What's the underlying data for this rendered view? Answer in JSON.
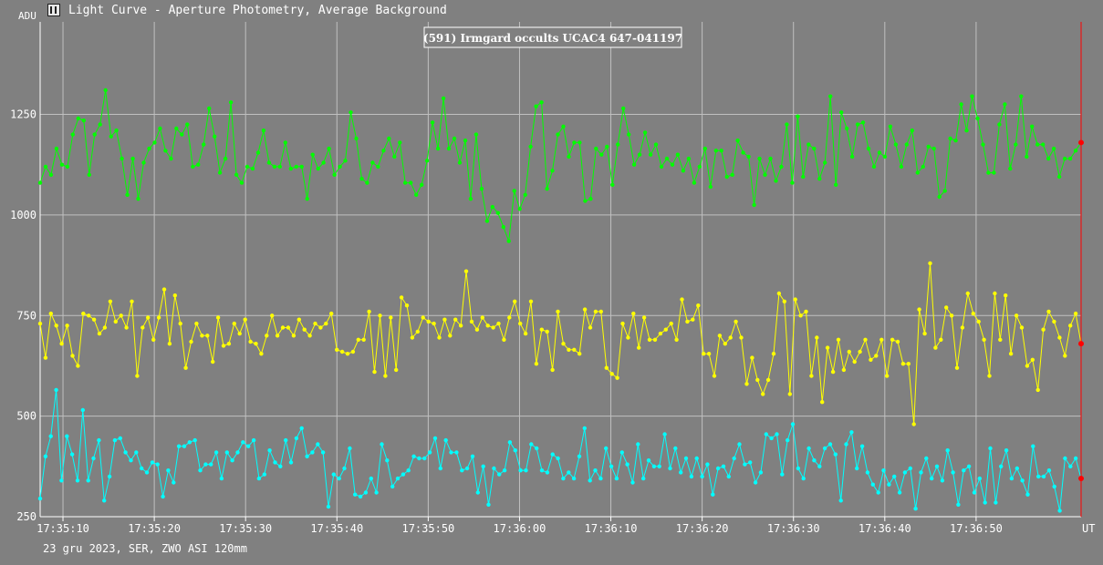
{
  "window": {
    "title": "Light Curve - Aperture Photometry, Average Background"
  },
  "footer": {
    "info": "23 gru 2023, SER, ZWO ASI 120mm"
  },
  "chart_data": {
    "type": "line",
    "title": "(591) Irmgard occults UCAC4 647-041197",
    "ylabel": "ADU",
    "xlabel": "UT",
    "ylim": [
      250,
      1480
    ],
    "grid": true,
    "y_ticks": [
      250,
      500,
      750,
      1000,
      1250
    ],
    "x_ticks": [
      {
        "t": 9.5,
        "label": "17:35:10"
      },
      {
        "t": 19.5,
        "label": "17:35:20"
      },
      {
        "t": 29.5,
        "label": "17:35:30"
      },
      {
        "t": 39.5,
        "label": "17:35:40"
      },
      {
        "t": 49.5,
        "label": "17:35:50"
      },
      {
        "t": 59.5,
        "label": "17:36:00"
      },
      {
        "t": 69.5,
        "label": "17:36:10"
      },
      {
        "t": 79.5,
        "label": "17:36:20"
      },
      {
        "t": 89.5,
        "label": "17:36:30"
      },
      {
        "t": 99.5,
        "label": "17:36:40"
      },
      {
        "t": 109.5,
        "label": "17:36:50"
      }
    ],
    "time_range_s": [
      7.0,
      121.0
    ],
    "cursor_t": 121.0,
    "series_colors": [
      "#00ff00",
      "#ffff00",
      "#00ffff"
    ],
    "cursor_color": "#ff0000",
    "series": [
      {
        "values": [
          1080,
          1120,
          1100,
          1165,
          1125,
          1120,
          1200,
          1240,
          1235,
          1100,
          1200,
          1225,
          1310,
          1195,
          1210,
          1140,
          1050,
          1140,
          1040,
          1130,
          1165,
          1180,
          1215,
          1160,
          1140,
          1215,
          1200,
          1225,
          1120,
          1125,
          1175,
          1265,
          1195,
          1105,
          1140,
          1280,
          1100,
          1080,
          1120,
          1115,
          1155,
          1210,
          1130,
          1120,
          1120,
          1180,
          1115,
          1120,
          1120,
          1040,
          1150,
          1115,
          1130,
          1165,
          1100,
          1120,
          1135,
          1255,
          1190,
          1090,
          1080,
          1130,
          1120,
          1160,
          1190,
          1145,
          1180,
          1080,
          1080,
          1050,
          1075,
          1135,
          1230,
          1165,
          1290,
          1165,
          1190,
          1130,
          1185,
          1040,
          1200,
          1065,
          985,
          1020,
          1005,
          970,
          935,
          1060,
          1015,
          1050,
          1170,
          1270,
          1280,
          1065,
          1110,
          1200,
          1220,
          1145,
          1180,
          1180,
          1035,
          1040,
          1165,
          1150,
          1170,
          1075,
          1175,
          1265,
          1200,
          1125,
          1150,
          1205,
          1150,
          1175,
          1120,
          1140,
          1125,
          1150,
          1110,
          1140,
          1080,
          1120,
          1165,
          1070,
          1160,
          1160,
          1095,
          1100,
          1185,
          1155,
          1145,
          1025,
          1140,
          1100,
          1140,
          1085,
          1120,
          1225,
          1080,
          1245,
          1095,
          1175,
          1165,
          1090,
          1130,
          1295,
          1075,
          1255,
          1215,
          1145,
          1225,
          1230,
          1165,
          1120,
          1155,
          1145,
          1220,
          1175,
          1120,
          1175,
          1210,
          1105,
          1120,
          1170,
          1165,
          1045,
          1060,
          1190,
          1185,
          1275,
          1210,
          1295,
          1240,
          1175,
          1105,
          1105,
          1225,
          1275,
          1115,
          1175,
          1295,
          1145,
          1220,
          1175,
          1175,
          1140,
          1165,
          1095,
          1140,
          1140,
          1160,
          1180
        ]
      },
      {
        "values": [
          730,
          645,
          755,
          725,
          680,
          725,
          650,
          625,
          755,
          750,
          740,
          705,
          720,
          785,
          735,
          750,
          720,
          785,
          600,
          720,
          745,
          690,
          745,
          815,
          680,
          800,
          730,
          620,
          685,
          730,
          700,
          700,
          635,
          745,
          675,
          680,
          730,
          705,
          740,
          685,
          680,
          655,
          700,
          750,
          700,
          720,
          720,
          700,
          740,
          715,
          700,
          730,
          720,
          730,
          755,
          665,
          660,
          655,
          660,
          690,
          690,
          760,
          610,
          750,
          600,
          745,
          615,
          795,
          775,
          695,
          710,
          745,
          735,
          730,
          695,
          740,
          700,
          740,
          725,
          860,
          735,
          715,
          745,
          725,
          720,
          730,
          690,
          745,
          785,
          730,
          705,
          785,
          630,
          715,
          710,
          615,
          760,
          680,
          665,
          665,
          655,
          765,
          720,
          760,
          760,
          620,
          605,
          595,
          730,
          695,
          755,
          670,
          745,
          690,
          690,
          705,
          715,
          730,
          690,
          790,
          735,
          740,
          775,
          655,
          655,
          600,
          700,
          680,
          695,
          735,
          695,
          580,
          645,
          590,
          555,
          590,
          655,
          805,
          785,
          555,
          790,
          750,
          760,
          600,
          695,
          535,
          670,
          610,
          690,
          615,
          660,
          635,
          660,
          690,
          640,
          650,
          690,
          600,
          690,
          685,
          630,
          630,
          480,
          765,
          705,
          880,
          670,
          690,
          770,
          750,
          620,
          720,
          805,
          755,
          735,
          690,
          600,
          805,
          690,
          800,
          655,
          750,
          720,
          625,
          640,
          565,
          715,
          760,
          735,
          695,
          650,
          725,
          755,
          680
        ]
      },
      {
        "values": [
          295,
          400,
          450,
          565,
          340,
          450,
          405,
          340,
          515,
          340,
          395,
          440,
          290,
          350,
          440,
          445,
          410,
          390,
          410,
          370,
          360,
          385,
          380,
          300,
          365,
          335,
          425,
          425,
          435,
          440,
          365,
          380,
          380,
          410,
          345,
          410,
          390,
          410,
          435,
          425,
          440,
          345,
          355,
          415,
          385,
          375,
          440,
          385,
          445,
          470,
          400,
          410,
          430,
          410,
          275,
          355,
          345,
          370,
          420,
          305,
          300,
          310,
          345,
          310,
          430,
          390,
          325,
          345,
          355,
          365,
          400,
          395,
          395,
          410,
          445,
          370,
          440,
          410,
          410,
          365,
          370,
          400,
          310,
          375,
          280,
          370,
          355,
          365,
          435,
          415,
          365,
          365,
          430,
          420,
          365,
          360,
          405,
          395,
          345,
          360,
          345,
          400,
          470,
          340,
          365,
          345,
          420,
          375,
          345,
          410,
          380,
          335,
          430,
          345,
          390,
          375,
          375,
          455,
          370,
          420,
          360,
          395,
          350,
          395,
          350,
          380,
          305,
          370,
          375,
          350,
          395,
          430,
          380,
          385,
          335,
          360,
          455,
          445,
          455,
          355,
          440,
          480,
          370,
          345,
          420,
          390,
          375,
          420,
          430,
          405,
          290,
          430,
          460,
          370,
          425,
          360,
          330,
          310,
          365,
          330,
          350,
          310,
          360,
          370,
          270,
          360,
          395,
          345,
          375,
          340,
          415,
          360,
          280,
          365,
          375,
          310,
          345,
          285,
          420,
          285,
          375,
          415,
          345,
          370,
          340,
          305,
          425,
          350,
          350,
          365,
          325,
          265,
          395,
          375,
          395,
          345
        ]
      }
    ]
  }
}
